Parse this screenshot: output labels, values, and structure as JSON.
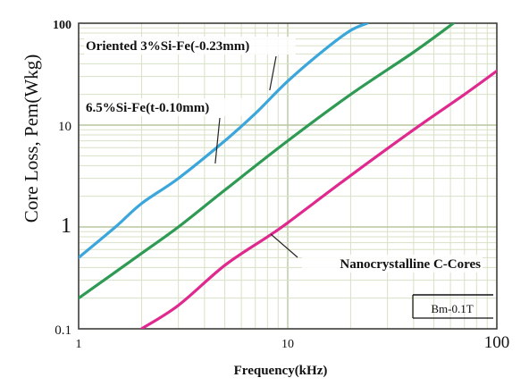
{
  "chart_data": {
    "type": "line",
    "xlabel": "Frequency(kHz)",
    "ylabel": "Core  Loss, Pem(Wkg)",
    "xscale": "log",
    "yscale": "log",
    "xlim": [
      1,
      100
    ],
    "ylim": [
      0.1,
      100
    ],
    "grid": true,
    "x_ticks": [
      {
        "value": 1,
        "label": "1"
      },
      {
        "value": 10,
        "label": "10"
      },
      {
        "value": 100,
        "label": "100"
      }
    ],
    "y_ticks": [
      {
        "value": 0.1,
        "label": "0.1"
      },
      {
        "value": 1,
        "label": "1"
      },
      {
        "value": 10,
        "label": "10"
      },
      {
        "value": 100,
        "label": "100"
      }
    ],
    "series": [
      {
        "name": "Oriented 3%Si-Fe(-0.23mm)",
        "color": "#3aa6dc",
        "x": [
          1,
          1.5,
          2,
          3,
          5,
          7,
          10,
          15,
          20,
          24
        ],
        "y": [
          0.5,
          1.0,
          1.7,
          3.0,
          7.0,
          13.0,
          27.0,
          55.0,
          85.0,
          100.0
        ]
      },
      {
        "name": "6.5%Si-Fe(t-0.10mm)",
        "color": "#2e9a54",
        "x": [
          1,
          2,
          3,
          5,
          10,
          20,
          40,
          62
        ],
        "y": [
          0.2,
          0.55,
          1.0,
          2.3,
          7.0,
          20.0,
          52.0,
          100.0
        ]
      },
      {
        "name": "Nanocrystalline C-Cores",
        "color": "#e0298f",
        "x": [
          2,
          3,
          5,
          8,
          10,
          20,
          40,
          70,
          100
        ],
        "y": [
          0.1,
          0.17,
          0.42,
          0.8,
          1.1,
          3.2,
          9.0,
          20.0,
          34.0
        ]
      }
    ],
    "annotations": [
      {
        "text": "Oriented 3%Si-Fe(-0.23mm)",
        "series": 0
      },
      {
        "text": "6.5%Si-Fe(t-0.10mm)",
        "series": 1
      },
      {
        "text": "Nanocrystalline C-Cores",
        "series": 2
      }
    ],
    "legend_box": {
      "text": "Bm-0.1T",
      "placement": "bottom-right"
    }
  }
}
